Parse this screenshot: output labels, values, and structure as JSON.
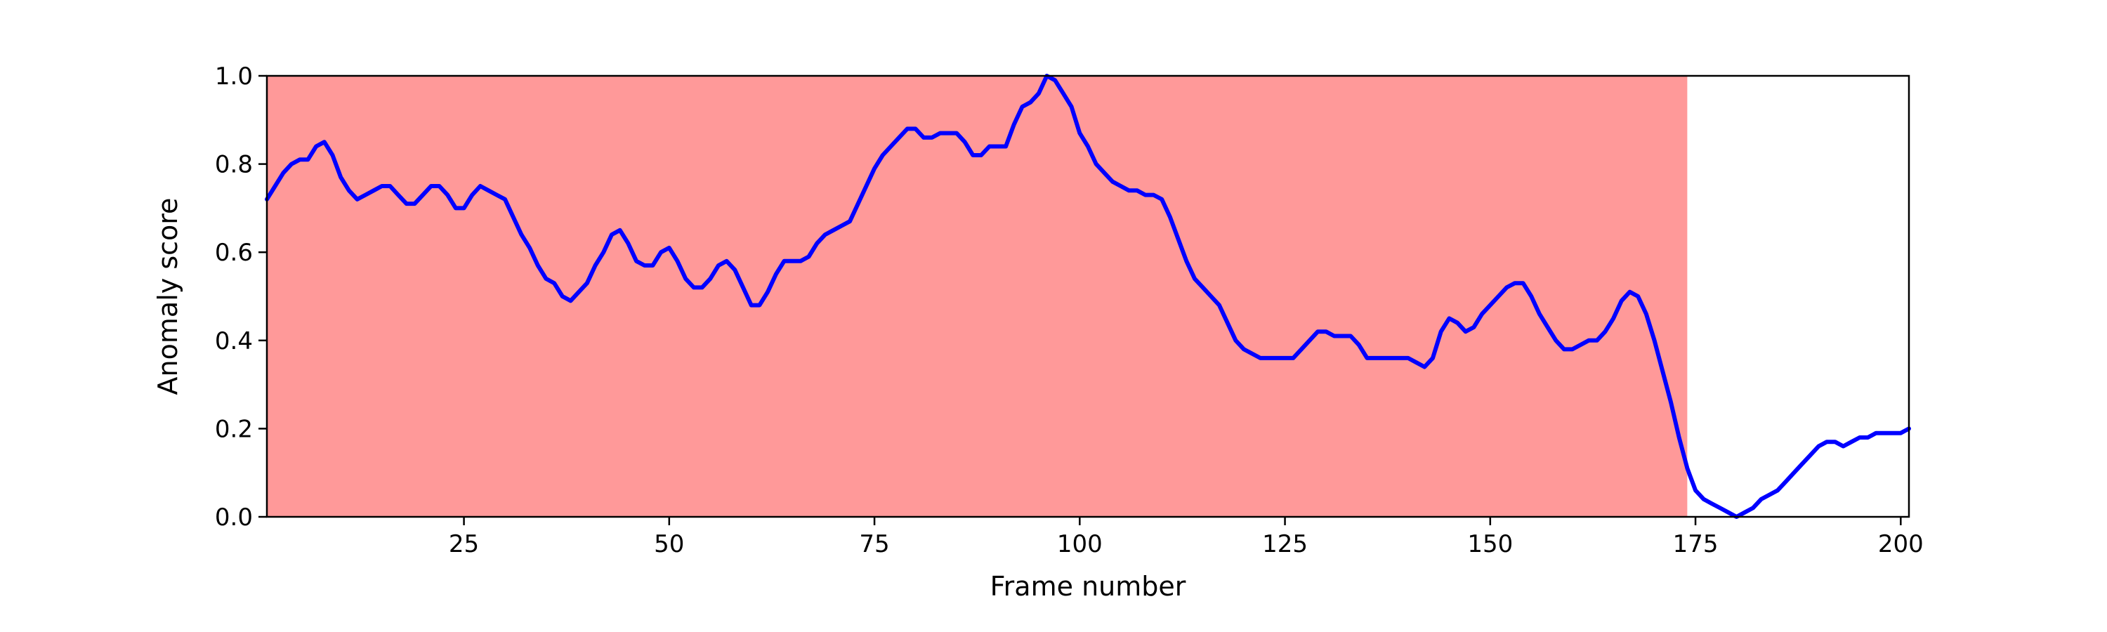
{
  "chart_data": {
    "type": "line",
    "title": "",
    "xlabel": "Frame number",
    "ylabel": "Anomaly score",
    "xlim": [
      1,
      201
    ],
    "ylim": [
      0,
      1.0
    ],
    "xticks": [
      25,
      50,
      75,
      100,
      125,
      150,
      175,
      200
    ],
    "yticks": [
      "0.0",
      "0.2",
      "0.4",
      "0.6",
      "0.8",
      "1.0"
    ],
    "grid": false,
    "legend": "none",
    "highlight_region": {
      "x_start": 1,
      "x_end": 174,
      "color": "#ff9999"
    },
    "series": [
      {
        "color": "#0000ff",
        "x": [
          1,
          2,
          3,
          4,
          5,
          6,
          7,
          8,
          9,
          10,
          11,
          12,
          13,
          14,
          15,
          16,
          17,
          18,
          19,
          20,
          21,
          22,
          23,
          24,
          25,
          26,
          27,
          28,
          29,
          30,
          31,
          32,
          33,
          34,
          35,
          36,
          37,
          38,
          39,
          40,
          41,
          42,
          43,
          44,
          45,
          46,
          47,
          48,
          49,
          50,
          51,
          52,
          53,
          54,
          55,
          56,
          57,
          58,
          59,
          60,
          61,
          62,
          63,
          64,
          65,
          66,
          67,
          68,
          69,
          70,
          71,
          72,
          73,
          74,
          75,
          76,
          77,
          78,
          79,
          80,
          81,
          82,
          83,
          84,
          85,
          86,
          87,
          88,
          89,
          90,
          91,
          92,
          93,
          94,
          95,
          96,
          97,
          98,
          99,
          100,
          101,
          102,
          103,
          104,
          105,
          106,
          107,
          108,
          109,
          110,
          111,
          112,
          113,
          114,
          115,
          116,
          117,
          118,
          119,
          120,
          121,
          122,
          123,
          124,
          125,
          126,
          127,
          128,
          129,
          130,
          131,
          132,
          133,
          134,
          135,
          136,
          137,
          138,
          139,
          140,
          141,
          142,
          143,
          144,
          145,
          146,
          147,
          148,
          149,
          150,
          151,
          152,
          153,
          154,
          155,
          156,
          157,
          158,
          159,
          160,
          161,
          162,
          163,
          164,
          165,
          166,
          167,
          168,
          169,
          170,
          171,
          172,
          173,
          174,
          175,
          176,
          177,
          178,
          179,
          180,
          181,
          182,
          183,
          184,
          185,
          186,
          187,
          188,
          189,
          190,
          191,
          192,
          193,
          194,
          195,
          196,
          197,
          198,
          199,
          200,
          201
        ],
        "values": [
          0.72,
          0.75,
          0.78,
          0.8,
          0.81,
          0.81,
          0.84,
          0.85,
          0.82,
          0.77,
          0.74,
          0.72,
          0.73,
          0.74,
          0.75,
          0.75,
          0.73,
          0.71,
          0.71,
          0.73,
          0.75,
          0.75,
          0.73,
          0.7,
          0.7,
          0.73,
          0.75,
          0.74,
          0.73,
          0.72,
          0.68,
          0.64,
          0.61,
          0.57,
          0.54,
          0.53,
          0.5,
          0.49,
          0.51,
          0.53,
          0.57,
          0.6,
          0.64,
          0.65,
          0.62,
          0.58,
          0.57,
          0.57,
          0.6,
          0.61,
          0.58,
          0.54,
          0.52,
          0.52,
          0.54,
          0.57,
          0.58,
          0.56,
          0.52,
          0.48,
          0.48,
          0.51,
          0.55,
          0.58,
          0.58,
          0.58,
          0.59,
          0.62,
          0.64,
          0.65,
          0.66,
          0.67,
          0.71,
          0.75,
          0.79,
          0.82,
          0.84,
          0.86,
          0.88,
          0.88,
          0.86,
          0.86,
          0.87,
          0.87,
          0.87,
          0.85,
          0.82,
          0.82,
          0.84,
          0.84,
          0.84,
          0.89,
          0.93,
          0.94,
          0.96,
          1.0,
          0.99,
          0.96,
          0.93,
          0.87,
          0.84,
          0.8,
          0.78,
          0.76,
          0.75,
          0.74,
          0.74,
          0.73,
          0.73,
          0.72,
          0.68,
          0.63,
          0.58,
          0.54,
          0.52,
          0.5,
          0.48,
          0.44,
          0.4,
          0.38,
          0.37,
          0.36,
          0.36,
          0.36,
          0.36,
          0.36,
          0.38,
          0.4,
          0.42,
          0.42,
          0.41,
          0.41,
          0.41,
          0.39,
          0.36,
          0.36,
          0.36,
          0.36,
          0.36,
          0.36,
          0.35,
          0.34,
          0.36,
          0.42,
          0.45,
          0.44,
          0.42,
          0.43,
          0.46,
          0.48,
          0.5,
          0.52,
          0.53,
          0.53,
          0.5,
          0.46,
          0.43,
          0.4,
          0.38,
          0.38,
          0.39,
          0.4,
          0.4,
          0.42,
          0.45,
          0.49,
          0.51,
          0.5,
          0.46,
          0.4,
          0.33,
          0.26,
          0.18,
          0.11,
          0.06,
          0.04,
          0.03,
          0.02,
          0.01,
          0.0,
          0.01,
          0.02,
          0.04,
          0.05,
          0.06,
          0.08,
          0.1,
          0.12,
          0.14,
          0.16,
          0.17,
          0.17,
          0.16,
          0.17,
          0.18,
          0.18,
          0.19,
          0.19,
          0.19,
          0.19,
          0.2
        ]
      }
    ]
  }
}
